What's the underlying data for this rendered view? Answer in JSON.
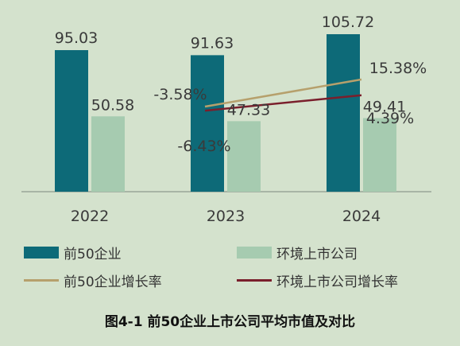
{
  "chart_data": {
    "type": "bar",
    "categories": [
      "2022",
      "2023",
      "2024"
    ],
    "series": [
      {
        "name": "前50企业",
        "type": "bar",
        "color": "#0d6a78",
        "values": [
          95.03,
          91.63,
          105.72
        ],
        "labels": [
          "95.03",
          "91.63",
          "105.72"
        ]
      },
      {
        "name": "环境上市公司",
        "type": "bar",
        "color": "#a6cbb0",
        "values": [
          50.58,
          47.33,
          49.41
        ],
        "labels": [
          "50.58",
          "47.33",
          "49.41"
        ]
      },
      {
        "name": "前50企业增长率",
        "type": "line",
        "color": "#b6a06c",
        "x": [
          "2023",
          "2024"
        ],
        "values": [
          -3.58,
          15.38
        ],
        "labels": [
          "-3.58%",
          "15.38%"
        ]
      },
      {
        "name": "环境上市公司增长率",
        "type": "line",
        "color": "#7a1f2c",
        "x": [
          "2023",
          "2024"
        ],
        "values": [
          -6.43,
          4.39
        ],
        "labels": [
          "-6.43%",
          "4.39%"
        ]
      }
    ],
    "ylim": [
      0,
      110
    ],
    "title": "",
    "xlabel": "",
    "ylabel": "",
    "grid": false,
    "legend_position": "bottom"
  },
  "caption": "图4-1 前50企业上市公司平均市值及对比"
}
